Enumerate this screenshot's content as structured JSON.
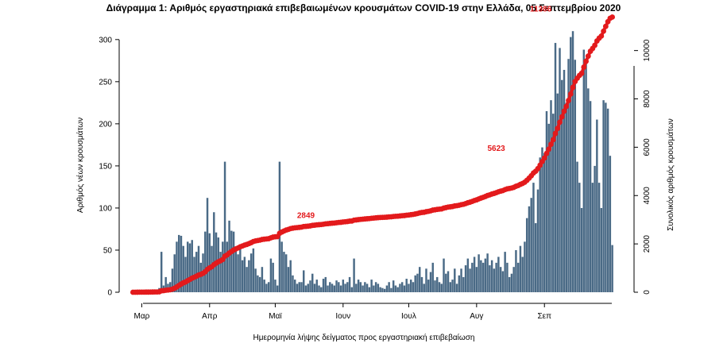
{
  "title": "Διάγραμμα 1: Αριθμός εργαστηριακά επιβεβαιωμένων κρουσμάτων COVID-19 στην Ελλάδα, 05 Σεπτεμβρίου 2020",
  "chart_data": {
    "type": "bar",
    "xlabel": "Ημερομηνία λήψης δείγματος προς εργαστηριακή επιβεβαίωση",
    "ylabel": "Αριθμός νέων κρουσμάτων",
    "y2label": "Συνολικός αριθμός κρουσμάτων",
    "ylim": [
      0,
      330
    ],
    "y2lim": [
      0,
      11500
    ],
    "yticks": [
      "0",
      "50",
      "100",
      "150",
      "200",
      "250",
      "300"
    ],
    "y2ticks": [
      "0",
      "2000",
      "4000",
      "6000",
      "8000",
      "10000"
    ],
    "x_start": "2020-02-26",
    "x_end": "2020-09-05",
    "month_ticks": [
      {
        "label": "Μαρ",
        "date": "2020-03-01"
      },
      {
        "label": "Απρ",
        "date": "2020-04-01"
      },
      {
        "label": "Μαϊ",
        "date": "2020-05-01"
      },
      {
        "label": "Ιουν",
        "date": "2020-06-01"
      },
      {
        "label": "Ιουλ",
        "date": "2020-07-01"
      },
      {
        "label": "Αυγ",
        "date": "2020-08-01"
      },
      {
        "label": "Σεπ",
        "date": "2020-09-01"
      }
    ],
    "bar_color": "#4a6a86",
    "line_color": "#e31a1c",
    "series": [
      {
        "values": [
          1,
          0,
          1,
          2,
          0,
          1,
          3,
          0,
          2,
          1,
          2,
          2,
          5,
          48,
          8,
          18,
          10,
          12,
          28,
          45,
          60,
          68,
          67,
          55,
          42,
          60,
          58,
          62,
          42,
          48,
          55,
          35,
          46,
          72,
          112,
          70,
          55,
          95,
          71,
          65,
          48,
          60,
          155,
          60,
          85,
          73,
          72,
          50,
          45,
          55,
          38,
          42,
          30,
          38,
          46,
          52,
          28,
          20,
          18,
          30,
          15,
          10,
          12,
          40,
          35,
          15,
          8,
          155,
          60,
          48,
          45,
          30,
          38,
          20,
          15,
          10,
          12,
          12,
          26,
          8,
          10,
          14,
          22,
          10,
          15,
          8,
          6,
          16,
          18,
          8,
          12,
          10,
          8,
          14,
          12,
          8,
          15,
          10,
          12,
          18,
          6,
          40,
          10,
          15,
          12,
          8,
          12,
          10,
          6,
          15,
          8,
          12,
          10,
          6,
          5,
          4,
          8,
          12,
          5,
          14,
          8,
          6,
          10,
          12,
          8,
          16,
          10,
          15,
          12,
          20,
          22,
          30,
          18,
          10,
          28,
          15,
          24,
          35,
          14,
          18,
          12,
          10,
          40,
          22,
          25,
          12,
          15,
          28,
          10,
          20,
          28,
          18,
          32,
          40,
          28,
          35,
          42,
          30,
          45,
          38,
          35,
          40,
          46,
          32,
          38,
          28,
          35,
          42,
          30,
          25,
          48,
          35,
          18,
          22,
          30,
          50,
          35,
          55,
          42,
          60,
          88,
          102,
          112,
          130,
          82,
          122,
          160,
          172,
          165,
          215,
          200,
          228,
          212,
          296,
          236,
          290,
          252,
          264,
          225,
          277,
          303,
          310,
          276,
          155,
          130,
          100,
          288,
          275,
          242,
          227,
          130,
          150,
          205,
          130,
          100,
          228,
          225,
          218,
          162,
          56
        ]
      }
    ],
    "cumulative_end": 11386,
    "annotations": [
      {
        "text": "2849",
        "date": "2020-05-15",
        "value": 2849
      },
      {
        "text": "5623",
        "date": "2020-08-10",
        "value": 5623
      },
      {
        "text": "11386",
        "date": "2020-09-05",
        "value": 11386
      }
    ]
  }
}
